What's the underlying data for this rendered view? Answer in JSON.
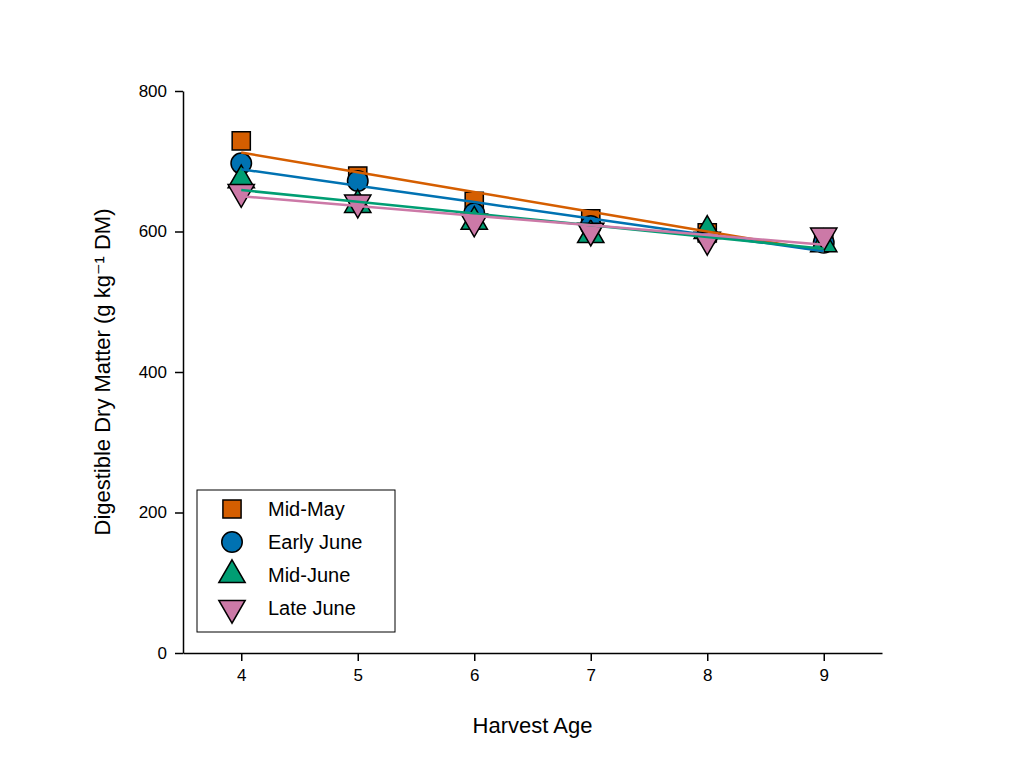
{
  "chart_data": {
    "type": "scatter",
    "x_label": "Harvest Age",
    "y_label": "Digestible Dry Matter (g kg⁻¹ DM)",
    "x": [
      4,
      5,
      6,
      7,
      8,
      9
    ],
    "xlim": [
      3.5,
      9.5
    ],
    "xticks": [
      4,
      5,
      6,
      7,
      8,
      9
    ],
    "ylim": [
      0,
      800
    ],
    "yticks": [
      0,
      200,
      400,
      600,
      800
    ],
    "grid": false,
    "legend": "lower left",
    "series": [
      {
        "name": "Mid-May",
        "color": "#D55E00",
        "marker": "square",
        "values": [
          729,
          679,
          643,
          618,
          598,
          586
        ]
      },
      {
        "name": "Early June",
        "color": "#0072B2",
        "marker": "circle",
        "values": [
          697,
          672,
          626,
          608,
          594,
          584
        ]
      },
      {
        "name": "Mid-June",
        "color": "#009E73",
        "marker": "triangle",
        "values": [
          673,
          638,
          614,
          595,
          601,
          582
        ]
      },
      {
        "name": "Late June",
        "color": "#CC79A7",
        "marker": "triangle-down",
        "values": [
          656,
          641,
          614,
          601,
          588,
          594
        ]
      }
    ]
  }
}
